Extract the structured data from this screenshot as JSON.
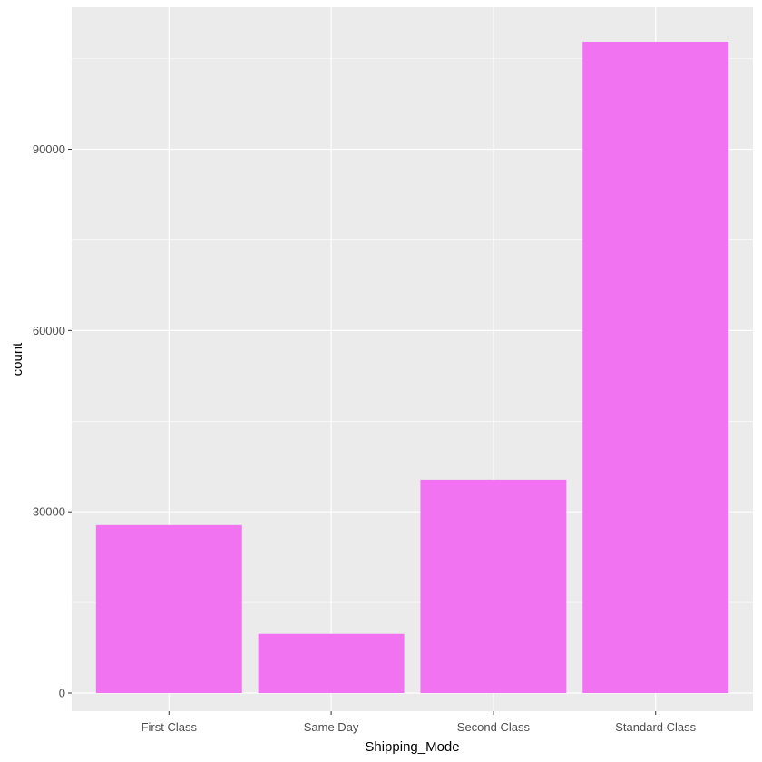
{
  "chart_data": {
    "type": "bar",
    "title": "",
    "xlabel": "Shipping_Mode",
    "ylabel": "count",
    "categories": [
      "First Class",
      "Same Day",
      "Second Class",
      "Standard Class"
    ],
    "values": [
      27800,
      9800,
      35300,
      107800
    ],
    "ylim": [
      -3000,
      113500
    ],
    "yticks": [
      0,
      30000,
      60000,
      90000
    ],
    "ytick_labels": [
      "0",
      "30000",
      "60000",
      "90000"
    ],
    "grid": true,
    "legend": "none",
    "colors": {
      "bar": "#f273f2",
      "panel_background": "#ebebeb",
      "grid_major": "#ffffff",
      "tick_label": "#4d4d4d",
      "axis_title": "#000000"
    }
  }
}
